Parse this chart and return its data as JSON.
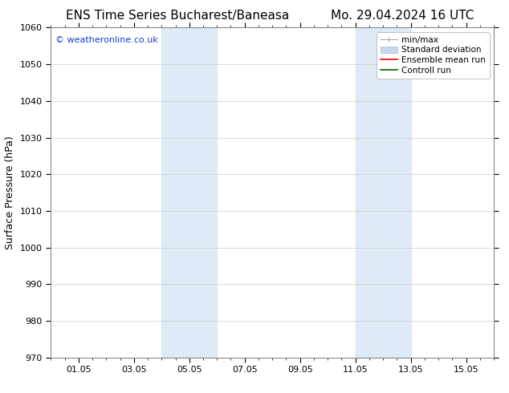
{
  "title_left": "ENS Time Series Bucharest/Baneasa",
  "title_right": "Mo. 29.04.2024 16 UTC",
  "ylabel": "Surface Pressure (hPa)",
  "ylim": [
    970,
    1060
  ],
  "yticks": [
    970,
    980,
    990,
    1000,
    1010,
    1020,
    1030,
    1040,
    1050,
    1060
  ],
  "xlim_start": 0.0,
  "xlim_end": 16.0,
  "xtick_labels": [
    "01.05",
    "03.05",
    "05.05",
    "07.05",
    "09.05",
    "11.05",
    "13.05",
    "15.05"
  ],
  "xtick_positions": [
    1,
    3,
    5,
    7,
    9,
    11,
    13,
    15
  ],
  "shading_regions": [
    {
      "xmin": 4.0,
      "xmax": 6.0,
      "color": "#deeaf5"
    },
    {
      "xmin": 11.0,
      "xmax": 13.0,
      "color": "#deeaf5"
    }
  ],
  "watermark_text": "© weatheronline.co.uk",
  "watermark_color": "#1144cc",
  "background_color": "#ffffff",
  "plot_bg_color": "#ffffff",
  "grid_color": "#cccccc",
  "legend_entries": [
    {
      "label": "min/max",
      "color": "#aaaaaa"
    },
    {
      "label": "Standard deviation",
      "color": "#c5dbed"
    },
    {
      "label": "Ensemble mean run",
      "color": "#ff0000"
    },
    {
      "label": "Controll run",
      "color": "#006600"
    }
  ],
  "title_fontsize": 11,
  "label_fontsize": 9,
  "tick_fontsize": 8,
  "watermark_fontsize": 8,
  "legend_fontsize": 7.5
}
